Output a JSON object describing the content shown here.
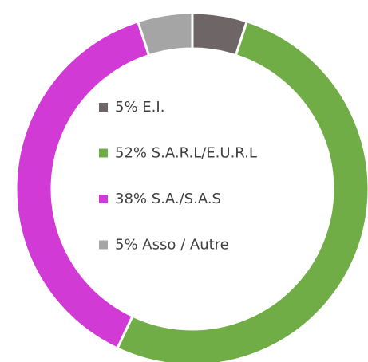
{
  "chart_data": {
    "type": "donut",
    "categories": [
      "E.I.",
      "S.A.R.L/E.U.R.L",
      "S.A./S.A.S",
      "Asso / Autre"
    ],
    "values": [
      5,
      52,
      38,
      5
    ],
    "value_labels": [
      "5%",
      "52%",
      "38%",
      "5%"
    ],
    "colors": [
      "#6e6566",
      "#70ad47",
      "#d23ad6",
      "#a5a5a5"
    ],
    "legend": "center"
  }
}
